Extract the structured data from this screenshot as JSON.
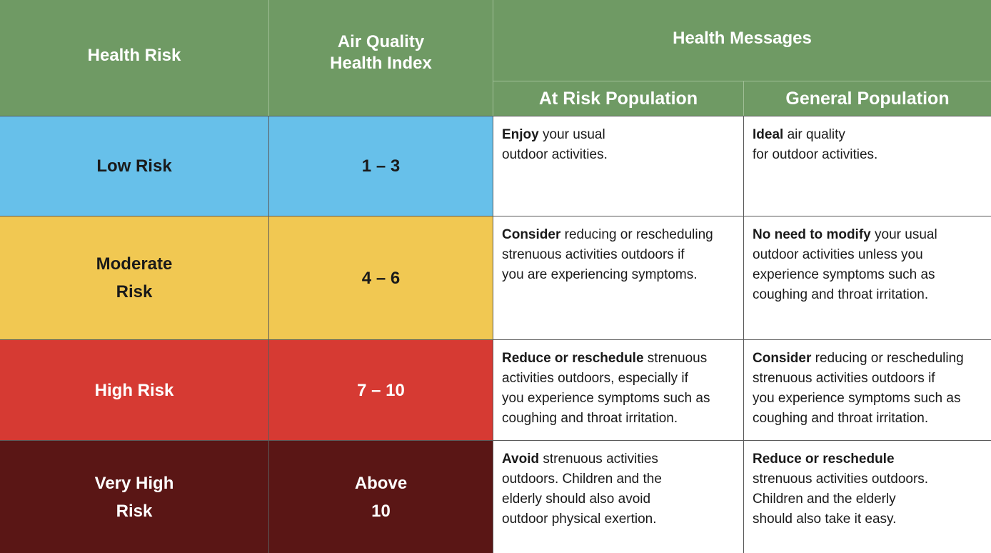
{
  "header": {
    "health_risk": "Health Risk",
    "aqhi_line1": "Air Quality",
    "aqhi_line2": "Health Index",
    "health_messages": "Health Messages",
    "at_risk_population": "At Risk Population",
    "general_population": "General Population"
  },
  "colors": {
    "header_green": "#6f9a64",
    "low": "#67c0ea",
    "moderate": "#f1c852",
    "high": "#d63a33",
    "very_high": "#5a1615"
  },
  "rows": [
    {
      "risk_line1": "Low Risk",
      "risk_line2": "",
      "index_line1": "1 – 3",
      "index_line2": "",
      "at_risk_bold": "Enjoy",
      "at_risk_text": " your usual\noutdoor activities.",
      "general_bold": "Ideal",
      "general_text": " air quality\nfor outdoor activities."
    },
    {
      "risk_line1": "Moderate",
      "risk_line2": "Risk",
      "index_line1": "4 – 6",
      "index_line2": "",
      "at_risk_bold": "Consider",
      "at_risk_text": " reducing or rescheduling\nstrenuous activities outdoors if\nyou are experiencing symptoms.",
      "general_bold": "No need to modify",
      "general_text": " your usual\noutdoor activities unless you\nexperience symptoms such as\ncoughing and throat irritation."
    },
    {
      "risk_line1": "High Risk",
      "risk_line2": "",
      "index_line1": "7 – 10",
      "index_line2": "",
      "at_risk_bold": "Reduce or reschedule",
      "at_risk_text": " strenuous\nactivities outdoors, especially if\nyou experience symptoms such as\ncoughing and throat irritation.",
      "general_bold": "Consider",
      "general_text": " reducing or rescheduling\nstrenuous activities outdoors if\nyou experience symptoms such as\ncoughing and throat irritation."
    },
    {
      "risk_line1": "Very High",
      "risk_line2": "Risk",
      "index_line1": "Above",
      "index_line2": "10",
      "at_risk_bold": "Avoid",
      "at_risk_text": " strenuous activities\noutdoors. Children and the\nelderly should also avoid\noutdoor physical exertion.",
      "general_bold": "Reduce or reschedule",
      "general_text": "\nstrenuous activities outdoors.\nChildren and the elderly\nshould also take it easy."
    }
  ]
}
